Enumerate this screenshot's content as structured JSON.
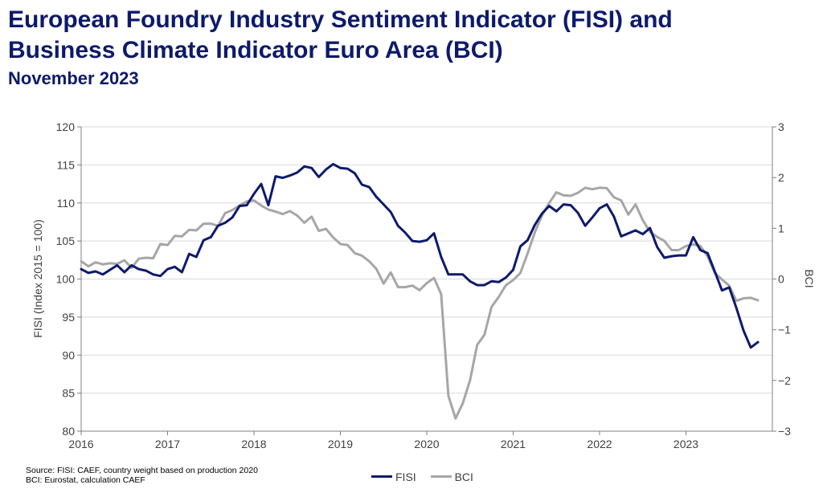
{
  "header": {
    "title_line1": "European Foundry Industry Sentiment Indicator (FISI) and",
    "title_line2": "Business Climate Indicator Euro Area (BCI)",
    "subtitle": "November 2023"
  },
  "source": {
    "line1": "Source: FISI: CAEF, country weight based on production 2020",
    "line2": "BCI: Eurostat, calculation CAEF"
  },
  "chart_data": {
    "type": "line",
    "xlabel": "",
    "ylabel": "FISI (Index 2015 = 100)",
    "y2label": "BCI",
    "xlim": [
      2016,
      2024
    ],
    "ylim": [
      80,
      120
    ],
    "y2lim": [
      -3,
      3
    ],
    "x_ticks": [
      2016,
      2017,
      2018,
      2019,
      2020,
      2021,
      2022,
      2023
    ],
    "y_ticks": [
      80,
      85,
      90,
      95,
      100,
      105,
      110,
      115,
      120
    ],
    "y2_ticks": [
      -3,
      -2,
      -1,
      0,
      1,
      2,
      3
    ],
    "grid": "horizontal",
    "legend_position": "bottom",
    "series": [
      {
        "name": "FISI",
        "axis": "left",
        "color": "#0d1a6b",
        "x": [
          "2016-01",
          "2016-02",
          "2016-03",
          "2016-04",
          "2016-05",
          "2016-06",
          "2016-07",
          "2016-08",
          "2016-09",
          "2016-10",
          "2016-11",
          "2016-12",
          "2017-01",
          "2017-02",
          "2017-03",
          "2017-04",
          "2017-05",
          "2017-06",
          "2017-07",
          "2017-08",
          "2017-09",
          "2017-10",
          "2017-11",
          "2017-12",
          "2018-01",
          "2018-02",
          "2018-03",
          "2018-04",
          "2018-05",
          "2018-06",
          "2018-07",
          "2018-08",
          "2018-09",
          "2018-10",
          "2018-11",
          "2018-12",
          "2019-01",
          "2019-02",
          "2019-03",
          "2019-04",
          "2019-05",
          "2019-06",
          "2019-07",
          "2019-08",
          "2019-09",
          "2019-10",
          "2019-11",
          "2019-12",
          "2020-01",
          "2020-02",
          "2020-03",
          "2020-04",
          "2020-05",
          "2020-06",
          "2020-07",
          "2020-08",
          "2020-09",
          "2020-10",
          "2020-11",
          "2020-12",
          "2021-01",
          "2021-02",
          "2021-03",
          "2021-04",
          "2021-05",
          "2021-06",
          "2021-07",
          "2021-08",
          "2021-09",
          "2021-10",
          "2021-11",
          "2021-12",
          "2022-01",
          "2022-02",
          "2022-03",
          "2022-04",
          "2022-05",
          "2022-06",
          "2022-07",
          "2022-08",
          "2022-09",
          "2022-10",
          "2022-11",
          "2022-12",
          "2023-01",
          "2023-02",
          "2023-03",
          "2023-04",
          "2023-05",
          "2023-06",
          "2023-07",
          "2023-08",
          "2023-09",
          "2023-10",
          "2023-11"
        ],
        "values": [
          101.3,
          100.8,
          101.0,
          100.6,
          101.2,
          101.8,
          100.9,
          101.8,
          101.3,
          101.1,
          100.6,
          100.4,
          101.3,
          101.6,
          100.9,
          103.3,
          102.9,
          105.1,
          105.5,
          107.0,
          107.4,
          108.1,
          109.6,
          109.7,
          111.2,
          112.5,
          109.7,
          113.5,
          113.3,
          113.6,
          114.0,
          114.8,
          114.6,
          113.4,
          114.4,
          115.1,
          114.6,
          114.5,
          113.9,
          112.4,
          112.1,
          110.8,
          109.8,
          108.8,
          107.0,
          106.1,
          105.0,
          104.9,
          105.1,
          106.0,
          102.9,
          100.6,
          100.6,
          100.6,
          99.7,
          99.2,
          99.2,
          99.7,
          99.6,
          100.2,
          101.2,
          104.3,
          105.1,
          107.1,
          108.6,
          109.6,
          108.9,
          109.8,
          109.7,
          108.7,
          107.0,
          108.1,
          109.3,
          109.8,
          108.2,
          105.6,
          106.0,
          106.4,
          105.9,
          106.7,
          104.2,
          102.8,
          103.0,
          103.1,
          103.1,
          105.5,
          103.8,
          103.4,
          101.0,
          98.5,
          98.9,
          96.2,
          93.2,
          91.0,
          91.7
        ]
      },
      {
        "name": "BCI",
        "axis": "right",
        "color": "#a6a6a6",
        "x": [
          "2016-01",
          "2016-02",
          "2016-03",
          "2016-04",
          "2016-05",
          "2016-06",
          "2016-07",
          "2016-08",
          "2016-09",
          "2016-10",
          "2016-11",
          "2016-12",
          "2017-01",
          "2017-02",
          "2017-03",
          "2017-04",
          "2017-05",
          "2017-06",
          "2017-07",
          "2017-08",
          "2017-09",
          "2017-10",
          "2017-11",
          "2017-12",
          "2018-01",
          "2018-02",
          "2018-03",
          "2018-04",
          "2018-05",
          "2018-06",
          "2018-07",
          "2018-08",
          "2018-09",
          "2018-10",
          "2018-11",
          "2018-12",
          "2019-01",
          "2019-02",
          "2019-03",
          "2019-04",
          "2019-05",
          "2019-06",
          "2019-07",
          "2019-08",
          "2019-09",
          "2019-10",
          "2019-11",
          "2019-12",
          "2020-01",
          "2020-02",
          "2020-03",
          "2020-04",
          "2020-05",
          "2020-06",
          "2020-07",
          "2020-08",
          "2020-09",
          "2020-10",
          "2020-11",
          "2020-12",
          "2021-01",
          "2021-02",
          "2021-03",
          "2021-04",
          "2021-05",
          "2021-06",
          "2021-07",
          "2021-08",
          "2021-09",
          "2021-10",
          "2021-11",
          "2021-12",
          "2022-01",
          "2022-02",
          "2022-03",
          "2022-04",
          "2022-05",
          "2022-06",
          "2022-07",
          "2022-08",
          "2022-09",
          "2022-10",
          "2022-11",
          "2022-12",
          "2023-01",
          "2023-02",
          "2023-03",
          "2023-04",
          "2023-05",
          "2023-06",
          "2023-07",
          "2023-08",
          "2023-09",
          "2023-10",
          "2023-11"
        ],
        "values": [
          0.35,
          0.25,
          0.33,
          0.29,
          0.31,
          0.3,
          0.37,
          0.22,
          0.4,
          0.42,
          0.41,
          0.69,
          0.67,
          0.85,
          0.84,
          0.97,
          0.96,
          1.09,
          1.09,
          1.05,
          1.3,
          1.36,
          1.45,
          1.53,
          1.55,
          1.45,
          1.37,
          1.33,
          1.28,
          1.34,
          1.25,
          1.11,
          1.23,
          0.95,
          0.99,
          0.82,
          0.69,
          0.67,
          0.51,
          0.46,
          0.35,
          0.2,
          -0.09,
          0.13,
          -0.16,
          -0.16,
          -0.13,
          -0.22,
          -0.08,
          0.02,
          -0.3,
          -2.3,
          -2.75,
          -2.45,
          -2.0,
          -1.3,
          -1.1,
          -0.55,
          -0.35,
          -0.12,
          -0.02,
          0.12,
          0.5,
          0.92,
          1.25,
          1.5,
          1.71,
          1.65,
          1.64,
          1.7,
          1.8,
          1.77,
          1.8,
          1.79,
          1.61,
          1.55,
          1.27,
          1.47,
          1.16,
          0.93,
          0.83,
          0.75,
          0.57,
          0.57,
          0.65,
          0.68,
          0.65,
          0.45,
          0.12,
          -0.01,
          -0.13,
          -0.43,
          -0.38,
          -0.37,
          -0.42
        ]
      }
    ]
  }
}
